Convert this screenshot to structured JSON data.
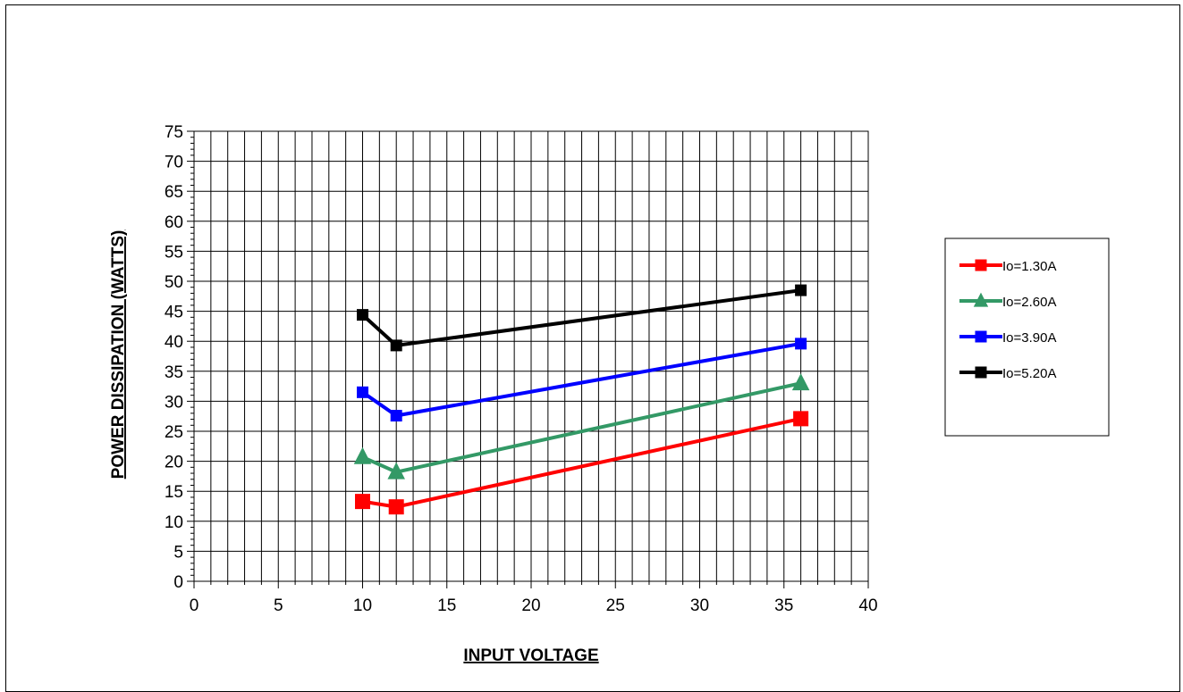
{
  "chart_data": {
    "type": "line",
    "xlabel": "INPUT VOLTAGE",
    "ylabel": "POWER DISSIPATION (WATTS)",
    "xlim": [
      0,
      40
    ],
    "ylim": [
      0,
      75
    ],
    "x_ticks": [
      0,
      5,
      10,
      15,
      20,
      25,
      30,
      35,
      40
    ],
    "y_ticks": [
      0,
      5,
      10,
      15,
      20,
      25,
      30,
      35,
      40,
      45,
      50,
      55,
      60,
      65,
      70,
      75
    ],
    "grid": true,
    "legend_position": "right",
    "series": [
      {
        "name": "Io=1.30A",
        "color": "#ff0000",
        "marker": "square",
        "x": [
          10,
          12,
          36
        ],
        "values": [
          13.3,
          12.4,
          27.1
        ]
      },
      {
        "name": "Io=2.60A",
        "color": "#339966",
        "marker": "triangle",
        "x": [
          10,
          12,
          36
        ],
        "values": [
          20.7,
          18.2,
          33.0
        ]
      },
      {
        "name": "Io=3.90A",
        "color": "#0000ff",
        "marker": "square",
        "x": [
          10,
          12,
          36
        ],
        "values": [
          31.5,
          27.6,
          39.6
        ]
      },
      {
        "name": "Io=5.20A",
        "color": "#000000",
        "marker": "square",
        "x": [
          10,
          12,
          36
        ],
        "values": [
          44.4,
          39.3,
          48.5
        ]
      }
    ]
  }
}
